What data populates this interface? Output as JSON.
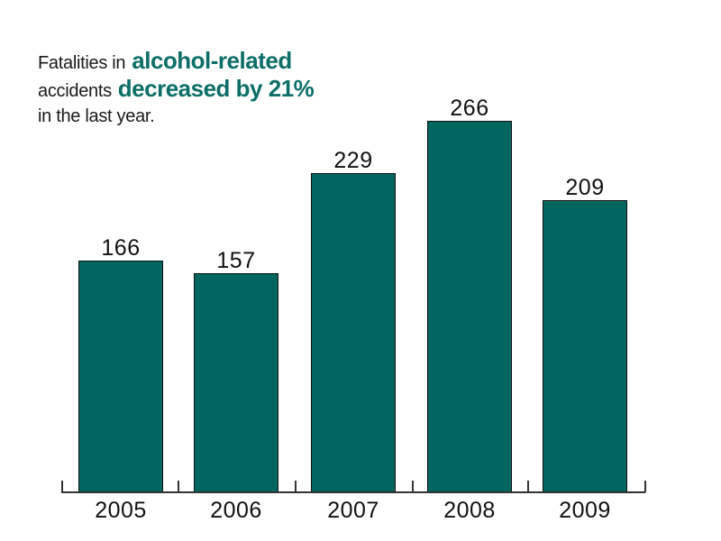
{
  "page": {
    "background": "#ffffff"
  },
  "annotation": {
    "line1_normal": "Fatalities in",
    "line1_emph": "alcohol-related",
    "line2_normal": "accidents",
    "line2_emph": "decreased by 21%",
    "line3_normal": "in the last year.",
    "normal_color": "#1a1a1a",
    "emph_color": "#0d6e68"
  },
  "chart_data": {
    "type": "bar",
    "categories": [
      "2005",
      "2006",
      "2007",
      "2008",
      "2009"
    ],
    "values": [
      166,
      157,
      229,
      266,
      209
    ],
    "bar_labels": [
      "166",
      "157",
      "229",
      "266",
      "209"
    ],
    "title": "Fatalities in alcohol-related accidents decreased by 21% in the last year.",
    "xlabel": "",
    "ylabel": "",
    "ylim": [
      0,
      290
    ],
    "grid": false,
    "legend": null,
    "value_labels_shown": true,
    "bar_color": "#026660",
    "bar_border_color": "#111111",
    "axis_color": "#333333",
    "label_color": "#111111"
  }
}
